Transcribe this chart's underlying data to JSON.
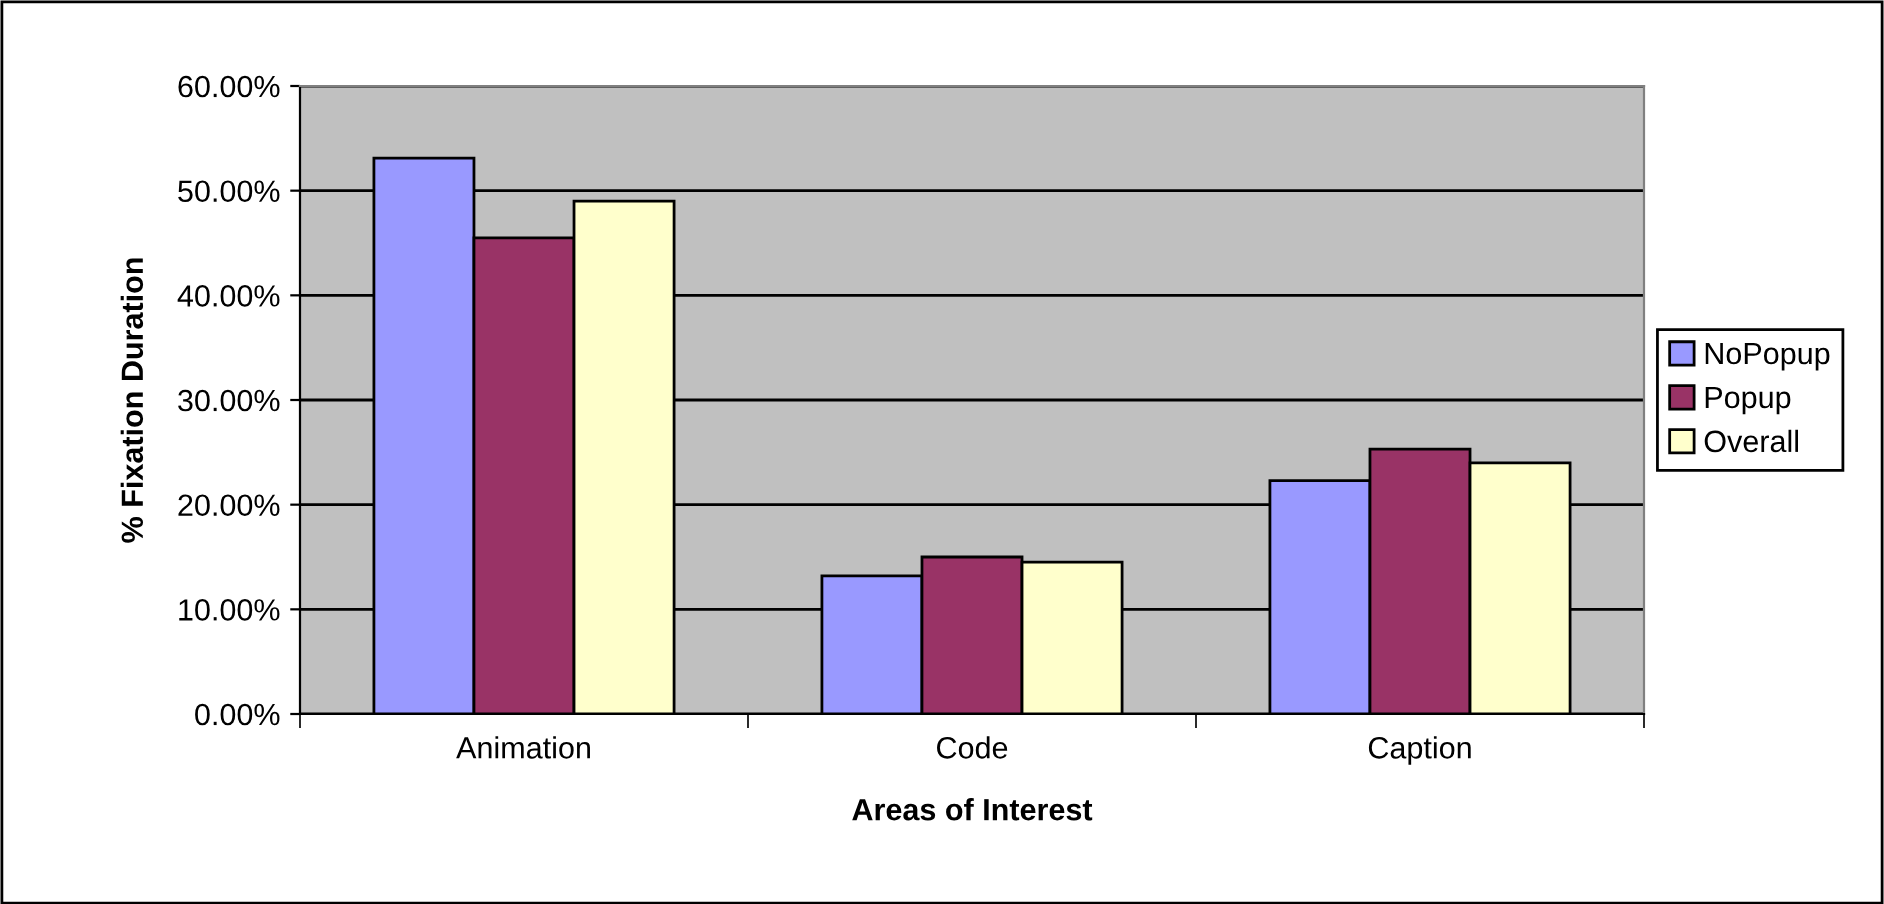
{
  "chart_data": {
    "type": "bar",
    "xlabel": "Areas of Interest",
    "ylabel": "% Fixation Duration",
    "categories": [
      "Animation",
      "Code",
      "Caption"
    ],
    "series": [
      {
        "name": "NoPopup",
        "color": "#9999ff",
        "values": [
          53.1,
          13.2,
          22.3
        ]
      },
      {
        "name": "Popup",
        "color": "#993366",
        "values": [
          45.5,
          15.0,
          25.3
        ]
      },
      {
        "name": "Overall",
        "color": "#ffffcc",
        "values": [
          49.0,
          14.5,
          24.0
        ]
      }
    ],
    "ylim": [
      0,
      60
    ],
    "yticks": [
      {
        "value": 0,
        "label": "0.00%"
      },
      {
        "value": 10,
        "label": "10.00%"
      },
      {
        "value": 20,
        "label": "20.00%"
      },
      {
        "value": 30,
        "label": "30.00%"
      },
      {
        "value": 40,
        "label": "40.00%"
      },
      {
        "value": 50,
        "label": "50.00%"
      },
      {
        "value": 60,
        "label": "60.00%"
      }
    ],
    "grid": "y",
    "legend": "right"
  }
}
